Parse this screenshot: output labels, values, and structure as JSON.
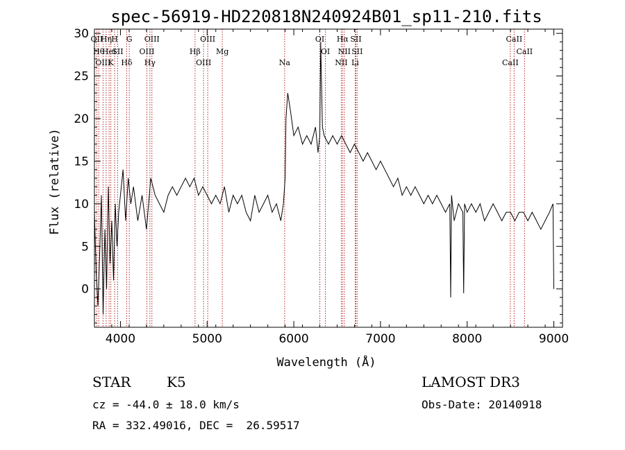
{
  "info": {
    "object_class": "STAR",
    "subclass": "K5",
    "survey": "LAMOST DR3",
    "redshift": "cz = -44.0 ± 18.0 km/s",
    "obs_date": "Obs-Date: 20140918",
    "coords": "RA = 332.49016, DEC =  26.59517"
  },
  "chart_data": {
    "type": "line",
    "title": "spec-56919-HD220818N240924B01_sp11-210.fits",
    "xlabel": "Wavelength (Å)",
    "ylabel": "Flux (relative)",
    "xlim": [
      3700,
      9100
    ],
    "ylim": [
      -4.5,
      30.5
    ],
    "xticks": [
      4000,
      5000,
      6000,
      7000,
      8000,
      9000
    ],
    "yticks": [
      0,
      5,
      10,
      15,
      20,
      25,
      30
    ],
    "line_color": "#000000",
    "marker_color": "#b22222",
    "series": [
      {
        "x": [
          3700,
          3720,
          3740,
          3760,
          3780,
          3800,
          3820,
          3840,
          3860,
          3880,
          3900,
          3920,
          3940,
          3960,
          3980,
          4000,
          4030,
          4060,
          4090,
          4120,
          4150,
          4200,
          4250,
          4300,
          4350,
          4400,
          4450,
          4500,
          4550,
          4600,
          4650,
          4700,
          4750,
          4800,
          4850,
          4900,
          4950,
          5000,
          5050,
          5100,
          5150,
          5200,
          5250,
          5300,
          5350,
          5400,
          5450,
          5500,
          5550,
          5600,
          5650,
          5700,
          5750,
          5800,
          5850,
          5880,
          5900,
          5910,
          5930,
          5960,
          6000,
          6050,
          6100,
          6150,
          6200,
          6250,
          6280,
          6300,
          6310,
          6330,
          6350,
          6400,
          6450,
          6500,
          6550,
          6600,
          6650,
          6700,
          6750,
          6800,
          6850,
          6900,
          6950,
          7000,
          7050,
          7100,
          7150,
          7200,
          7250,
          7300,
          7350,
          7400,
          7450,
          7500,
          7550,
          7600,
          7650,
          7700,
          7750,
          7800,
          7810,
          7820,
          7850,
          7900,
          7950,
          7960,
          7970,
          8000,
          8050,
          8100,
          8150,
          8200,
          8250,
          8300,
          8350,
          8400,
          8450,
          8500,
          8550,
          8600,
          8650,
          8700,
          8750,
          8800,
          8850,
          8900,
          8950,
          8990,
          9000
        ],
        "y": [
          9,
          2,
          -2,
          4,
          11,
          -3,
          7,
          0,
          12,
          3,
          8,
          1,
          10,
          5,
          9,
          11,
          14,
          8,
          13,
          10,
          12,
          8,
          11,
          7,
          13,
          11,
          10,
          9,
          11,
          12,
          11,
          12,
          13,
          12,
          13,
          11,
          12,
          11,
          10,
          11,
          10,
          12,
          9,
          11,
          10,
          11,
          9,
          8,
          11,
          9,
          10,
          11,
          9,
          10,
          8,
          10,
          13,
          20,
          23,
          21,
          18,
          19,
          17,
          18,
          17,
          19,
          16,
          18,
          29,
          19,
          18,
          17,
          18,
          17,
          18,
          17,
          16,
          17,
          16,
          15,
          16,
          15,
          14,
          15,
          14,
          13,
          12,
          13,
          11,
          12,
          11,
          12,
          11,
          10,
          11,
          10,
          11,
          10,
          9,
          10,
          -1,
          11,
          8,
          10,
          9,
          -0.5,
          10,
          9,
          10,
          9,
          10,
          8,
          9,
          10,
          9,
          8,
          9,
          9,
          8,
          9,
          9,
          8,
          9,
          8,
          7,
          8,
          9,
          10,
          0
        ]
      }
    ],
    "lines": [
      {
        "wave": 3727,
        "label": "OII"
      },
      {
        "wave": 3750,
        "label": "Hθ"
      },
      {
        "wave": 3799,
        "label": "OIII"
      },
      {
        "wave": 3835,
        "label": "Hη"
      },
      {
        "wave": 3869,
        "label": "HeI"
      },
      {
        "wave": 3889,
        "label": "K"
      },
      {
        "wave": 3933,
        "label": "H"
      },
      {
        "wave": 3968,
        "label": "SII"
      },
      {
        "wave": 4072,
        "label": "Hδ"
      },
      {
        "wave": 4102,
        "label": "G"
      },
      {
        "wave": 4305,
        "label": "OIII"
      },
      {
        "wave": 4340,
        "label": "Hγ"
      },
      {
        "wave": 4363,
        "label": "OIII"
      },
      {
        "wave": 4861,
        "label": "Hβ"
      },
      {
        "wave": 4959,
        "label": "OIII"
      },
      {
        "wave": 5007,
        "label": "OIII"
      },
      {
        "wave": 5175,
        "label": "Mg"
      },
      {
        "wave": 5894,
        "label": "Na"
      },
      {
        "wave": 6300,
        "label": "OI"
      },
      {
        "wave": 6364,
        "label": "OI"
      },
      {
        "wave": 6548,
        "label": "NII"
      },
      {
        "wave": 6563,
        "label": "Hα"
      },
      {
        "wave": 6583,
        "label": "NII"
      },
      {
        "wave": 6708,
        "label": "Li"
      },
      {
        "wave": 6716,
        "label": "SII"
      },
      {
        "wave": 6731,
        "label": "SII"
      },
      {
        "wave": 8498,
        "label": "CaII"
      },
      {
        "wave": 8542,
        "label": "CaII"
      },
      {
        "wave": 8662,
        "label": "CaII"
      }
    ]
  }
}
